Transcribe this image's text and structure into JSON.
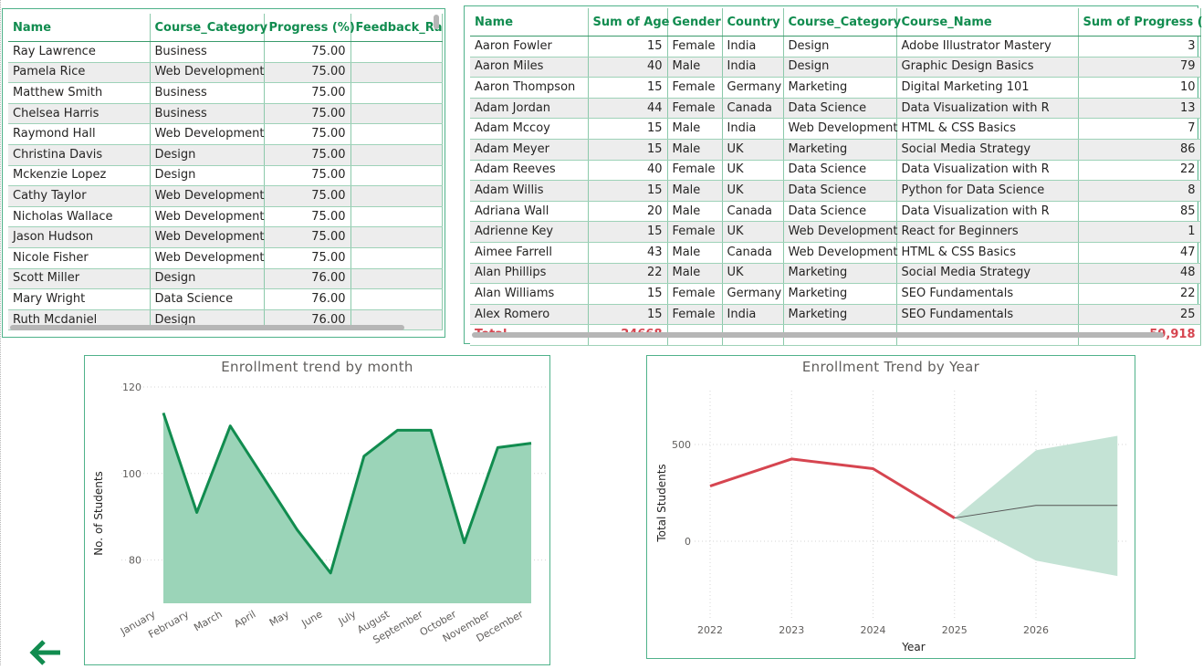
{
  "table1": {
    "columns": [
      "Name",
      "Course_Category",
      "Progress (%)",
      "Feedback_Ra"
    ],
    "rows": [
      [
        "Ray Lawrence",
        "Business",
        "75.00",
        ""
      ],
      [
        "Pamela Rice",
        "Web Development",
        "75.00",
        ""
      ],
      [
        "Matthew Smith",
        "Business",
        "75.00",
        ""
      ],
      [
        "Chelsea Harris",
        "Business",
        "75.00",
        ""
      ],
      [
        "Raymond Hall",
        "Web Development",
        "75.00",
        ""
      ],
      [
        "Christina Davis",
        "Design",
        "75.00",
        ""
      ],
      [
        "Mckenzie Lopez",
        "Design",
        "75.00",
        ""
      ],
      [
        "Cathy Taylor",
        "Web Development",
        "75.00",
        ""
      ],
      [
        "Nicholas Wallace",
        "Web Development",
        "75.00",
        ""
      ],
      [
        "Jason Hudson",
        "Web Development",
        "75.00",
        ""
      ],
      [
        "Nicole Fisher",
        "Web Development",
        "75.00",
        ""
      ],
      [
        "Scott Miller",
        "Design",
        "76.00",
        ""
      ],
      [
        "Mary Wright",
        "Data Science",
        "76.00",
        ""
      ],
      [
        "Ruth Mcdaniel",
        "Design",
        "76.00",
        ""
      ]
    ]
  },
  "table2": {
    "columns": [
      "Name",
      "Sum of Age",
      "Gender",
      "Country",
      "Course_Category",
      "Course_Name",
      "Sum of Progress ("
    ],
    "rows": [
      [
        "Aaron Fowler",
        "15",
        "Female",
        "India",
        "Design",
        "Adobe Illustrator Mastery",
        "3"
      ],
      [
        "Aaron Miles",
        "40",
        "Male",
        "India",
        "Design",
        "Graphic Design Basics",
        "79"
      ],
      [
        "Aaron Thompson",
        "15",
        "Female",
        "Germany",
        "Marketing",
        "Digital Marketing 101",
        "10"
      ],
      [
        "Adam Jordan",
        "44",
        "Female",
        "Canada",
        "Data Science",
        "Data Visualization with R",
        "13"
      ],
      [
        "Adam Mccoy",
        "15",
        "Male",
        "India",
        "Web Development",
        "HTML & CSS Basics",
        "7"
      ],
      [
        "Adam Meyer",
        "15",
        "Male",
        "UK",
        "Marketing",
        "Social Media Strategy",
        "86"
      ],
      [
        "Adam Reeves",
        "40",
        "Female",
        "UK",
        "Data Science",
        "Data Visualization with R",
        "22"
      ],
      [
        "Adam Willis",
        "15",
        "Male",
        "UK",
        "Data Science",
        "Python for Data Science",
        "8"
      ],
      [
        "Adriana Wall",
        "20",
        "Male",
        "Canada",
        "Data Science",
        "Data Visualization with R",
        "85"
      ],
      [
        "Adrienne Key",
        "15",
        "Female",
        "UK",
        "Web Development",
        "React for Beginners",
        "1"
      ],
      [
        "Aimee Farrell",
        "43",
        "Male",
        "Canada",
        "Web Development",
        "HTML & CSS Basics",
        "47"
      ],
      [
        "Alan Phillips",
        "22",
        "Male",
        "UK",
        "Marketing",
        "Social Media Strategy",
        "48"
      ],
      [
        "Alan Williams",
        "15",
        "Female",
        "Germany",
        "Marketing",
        "SEO Fundamentals",
        "22"
      ],
      [
        "Alex Romero",
        "15",
        "Female",
        "India",
        "Marketing",
        "SEO Fundamentals",
        "25"
      ]
    ],
    "total": [
      "Total",
      "24668",
      "",
      "",
      "",
      "",
      "59,918"
    ]
  },
  "chart_data": [
    {
      "type": "area",
      "title": "Enrollment trend by month",
      "xlabel": "",
      "ylabel": "No. of Students",
      "categories": [
        "January",
        "February",
        "March",
        "April",
        "May",
        "June",
        "July",
        "August",
        "September",
        "October",
        "November",
        "December"
      ],
      "values": [
        114,
        91,
        111,
        99,
        87,
        77,
        104,
        110,
        110,
        84,
        106,
        107
      ],
      "ylim": [
        70,
        120
      ],
      "yticks": [
        80,
        100,
        120
      ],
      "grid": true,
      "line_color": "#118c4f",
      "fill_color": "#9bd4b8"
    },
    {
      "type": "line",
      "title": "Enrollment Trend by Year",
      "xlabel": "Year",
      "ylabel": "Total Students",
      "x": [
        2022,
        2023,
        2024,
        2025
      ],
      "values": [
        285,
        425,
        375,
        120
      ],
      "forecast": {
        "x": [
          2025,
          2026,
          2027
        ],
        "values": [
          120,
          185,
          185
        ],
        "upper": [
          120,
          470,
          545
        ],
        "lower": [
          120,
          -100,
          -180
        ]
      },
      "xticks": [
        2022,
        2023,
        2024,
        2025,
        2026
      ],
      "yticks": [
        0,
        500
      ],
      "grid": true,
      "line_color": "#d64550",
      "forecast_color": "#555555",
      "band_color": "#c4e3d5"
    }
  ],
  "nav": {
    "back_icon": "arrow-left-icon",
    "accent_color": "#118c4f"
  }
}
